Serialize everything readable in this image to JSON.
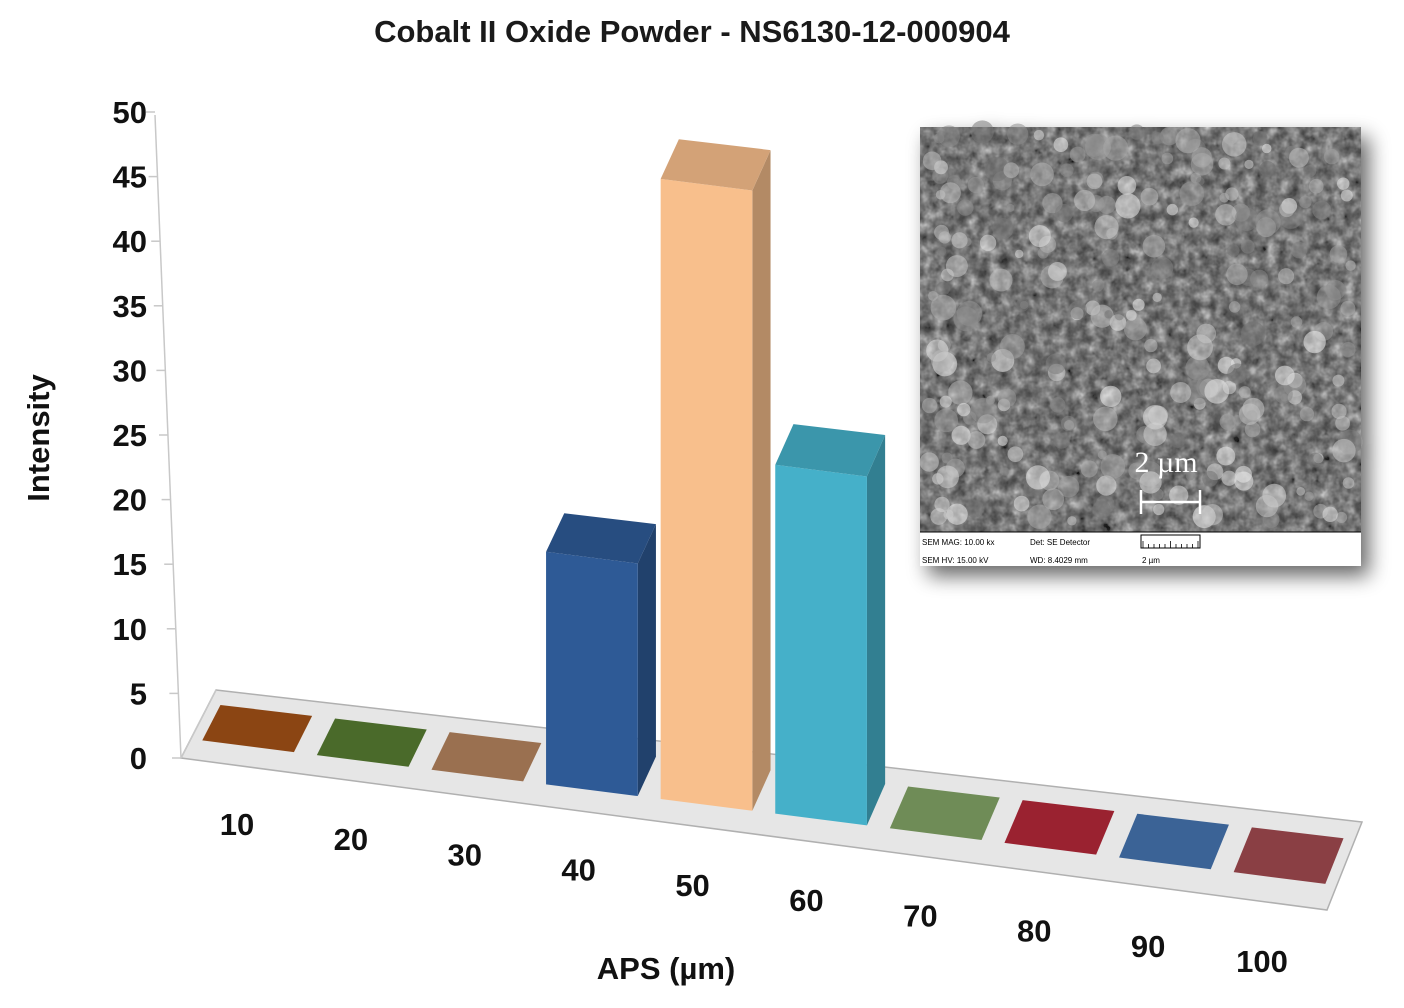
{
  "chart_data": {
    "type": "bar",
    "title": "Cobalt II Oxide Powder - NS6130-12-000904",
    "xlabel": "APS (µm)",
    "ylabel": "Intensity",
    "categories": [
      "10",
      "20",
      "30",
      "40",
      "50",
      "60",
      "70",
      "80",
      "90",
      "100"
    ],
    "values": [
      0,
      0,
      0,
      18,
      48,
      27,
      0,
      0,
      0,
      0
    ],
    "yticks": [
      "0",
      "5",
      "10",
      "15",
      "20",
      "25",
      "30",
      "35",
      "40",
      "45",
      "50"
    ],
    "ylim": [
      0,
      50
    ],
    "grid": false,
    "colors": [
      "#8b4513",
      "#4a6a2a",
      "#9a7050",
      "#2e5a96",
      "#f8bf8c",
      "#45b0c9",
      "#6f8c57",
      "#9a2230",
      "#3b6396",
      "#8a3f44"
    ],
    "projection": "3d"
  },
  "inset": {
    "kind": "SEM micrograph",
    "scale_label": "2 µm",
    "info": {
      "mag": "SEM MAG: 10.00 kx",
      "det": "Det: SE Detector",
      "hv": "SEM HV: 15.00 kV",
      "wd": "WD: 8.4029 mm",
      "scale": "2 µm"
    }
  }
}
